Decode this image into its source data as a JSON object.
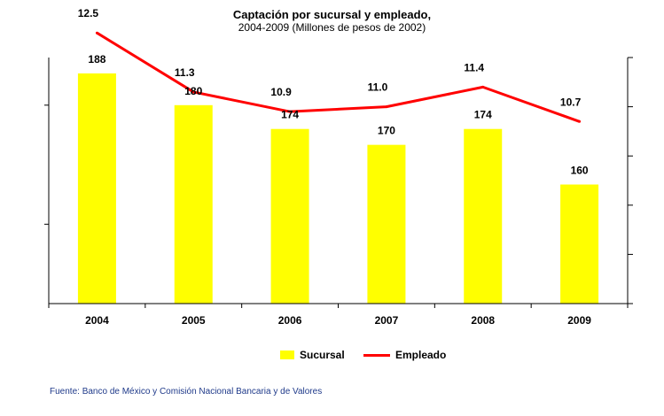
{
  "chart_data": {
    "type": "bar+line",
    "title": "Captación por sucursal y empleado,",
    "subtitle": "2004-2009 (Millones de pesos de 2002)",
    "categories": [
      "2004",
      "2005",
      "2006",
      "2007",
      "2008",
      "2009"
    ],
    "series": [
      {
        "name": "Sucursal",
        "type": "bar",
        "axis": "left",
        "values": [
          188,
          180,
          174,
          170,
          174,
          160
        ],
        "color": "#ffff00"
      },
      {
        "name": "Empleado",
        "type": "line",
        "axis": "right",
        "values": [
          12.5,
          11.3,
          10.9,
          11.0,
          11.4,
          10.7
        ],
        "color": "#ff0000"
      }
    ],
    "left_axis": {
      "ylim": [
        130,
        192
      ]
    },
    "right_axis": {
      "ylim": [
        7.0,
        12.0
      ]
    },
    "grid": false,
    "legend_position": "bottom"
  },
  "source": "Fuente: Banco de México y Comisión Nacional Bancaria y de Valores"
}
